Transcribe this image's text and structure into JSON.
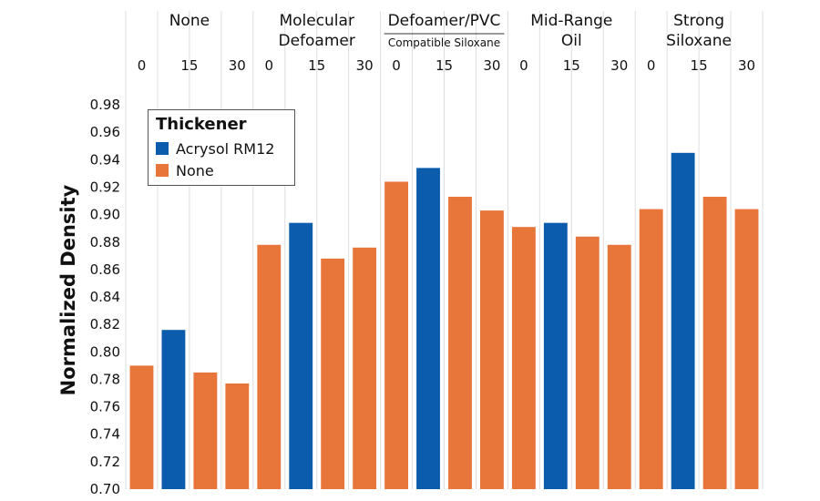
{
  "chart_data": {
    "type": "bar",
    "ylabel": "Normalized Density",
    "ylim": [
      0.7,
      0.99
    ],
    "yticks": [
      "0.70",
      "0.72",
      "0.74",
      "0.76",
      "0.78",
      "0.80",
      "0.82",
      "0.84",
      "0.86",
      "0.88",
      "0.90",
      "0.92",
      "0.94",
      "0.96",
      "0.98"
    ],
    "groups": [
      {
        "label": [
          "None"
        ],
        "bars": [
          {
            "x": "0",
            "value": 0.79,
            "series": "None"
          },
          {
            "x": "15",
            "value": 0.816,
            "series": "Acrysol RM12"
          },
          {
            "x": "",
            "value": 0.785,
            "series": "None"
          },
          {
            "x": "30",
            "value": 0.777,
            "series": "None"
          }
        ]
      },
      {
        "label": [
          "Molecular",
          "Defoamer"
        ],
        "bars": [
          {
            "x": "0",
            "value": 0.878,
            "series": "None"
          },
          {
            "x": "15",
            "value": 0.894,
            "series": "Acrysol RM12"
          },
          {
            "x": "",
            "value": 0.868,
            "series": "None"
          },
          {
            "x": "30",
            "value": 0.876,
            "series": "None"
          }
        ]
      },
      {
        "label": [
          "Defoamer/PVC"
        ],
        "sublabel": "Compatible Siloxane",
        "bars": [
          {
            "x": "0",
            "value": 0.924,
            "series": "None"
          },
          {
            "x": "15",
            "value": 0.934,
            "series": "Acrysol RM12"
          },
          {
            "x": "",
            "value": 0.913,
            "series": "None"
          },
          {
            "x": "30",
            "value": 0.903,
            "series": "None"
          }
        ]
      },
      {
        "label": [
          "Mid-Range",
          "Oil"
        ],
        "bars": [
          {
            "x": "0",
            "value": 0.891,
            "series": "None"
          },
          {
            "x": "15",
            "value": 0.894,
            "series": "Acrysol RM12"
          },
          {
            "x": "",
            "value": 0.884,
            "series": "None"
          },
          {
            "x": "30",
            "value": 0.878,
            "series": "None"
          }
        ]
      },
      {
        "label": [
          "Strong",
          "Siloxane"
        ],
        "bars": [
          {
            "x": "0",
            "value": 0.904,
            "series": "None"
          },
          {
            "x": "15",
            "value": 0.945,
            "series": "Acrysol RM12"
          },
          {
            "x": "",
            "value": 0.913,
            "series": "None"
          },
          {
            "x": "30",
            "value": 0.904,
            "series": "None"
          }
        ]
      }
    ],
    "legend": {
      "title": "Thickener",
      "position": "top-left",
      "entries": [
        {
          "name": "Acrysol RM12",
          "color": "#0b5cad"
        },
        {
          "name": "None",
          "color": "#e8763a"
        }
      ]
    }
  }
}
